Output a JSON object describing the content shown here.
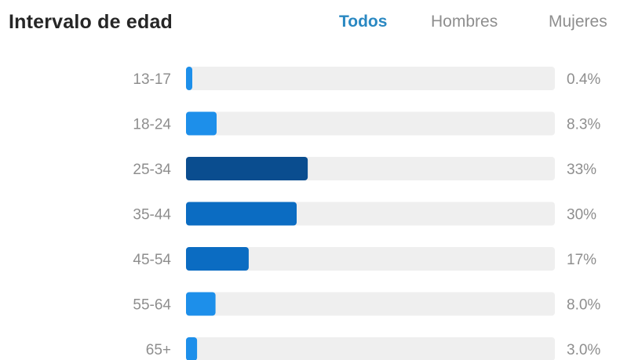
{
  "header": {
    "title": "Intervalo de edad",
    "tabs": [
      {
        "label": "Todos",
        "active": true
      },
      {
        "label": "Hombres",
        "active": false
      },
      {
        "label": "Mujeres",
        "active": false
      }
    ]
  },
  "colors": {
    "active_tab": "#2a88c2",
    "inactive_tab": "#8e8e8e",
    "track": "#efefef",
    "bar_light": "#1d8fea",
    "bar_mid": "#0b6cc2",
    "bar_dark": "#0a4d8f"
  },
  "chart_data": {
    "type": "bar",
    "orientation": "horizontal",
    "categories": [
      "13-17",
      "18-24",
      "25-34",
      "35-44",
      "45-54",
      "55-64",
      "65+"
    ],
    "values": [
      0.4,
      8.3,
      33,
      30,
      17,
      8.0,
      3.0
    ],
    "value_labels": [
      "0.4%",
      "8.3%",
      "33%",
      "30%",
      "17%",
      "8.0%",
      "3.0%"
    ],
    "unit": "%",
    "xlim": [
      0,
      100
    ],
    "grid": false
  }
}
